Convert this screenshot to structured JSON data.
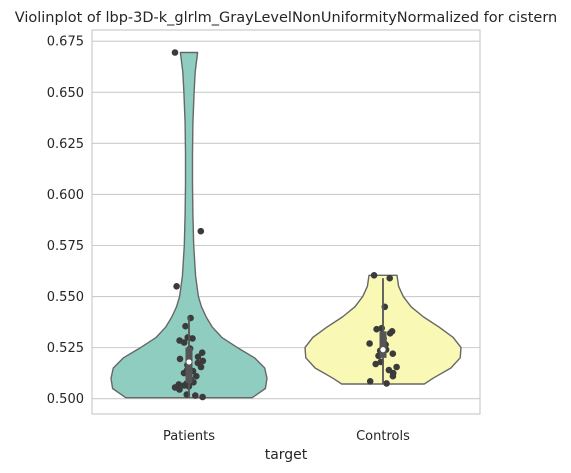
{
  "chart_data": {
    "type": "violin",
    "title": "Violinplot of lbp-3D-k_glrlm_GrayLevelNonUniformityNormalized for cistern",
    "xlabel": "target",
    "ylabel": "",
    "ylim": [
      0.4925,
      0.6805
    ],
    "yticks": [
      "0.500",
      "0.525",
      "0.550",
      "0.575",
      "0.600",
      "0.625",
      "0.650",
      "0.675"
    ],
    "grid": true,
    "categories": [
      "Patients",
      "Controls"
    ],
    "colors": [
      "#8ecdc0",
      "#f9f8b5"
    ],
    "series": [
      {
        "category": "Patients",
        "min": 0.5005,
        "max": 0.6695,
        "q1": 0.5078,
        "median": 0.518,
        "q3": 0.525,
        "whisker_low": 0.5005,
        "whisker_high": 0.54,
        "density": [
          [
            0.5005,
            0.81
          ],
          [
            0.505,
            0.98
          ],
          [
            0.51,
            1.0
          ],
          [
            0.515,
            0.97
          ],
          [
            0.52,
            0.84
          ],
          [
            0.525,
            0.62
          ],
          [
            0.53,
            0.42
          ],
          [
            0.535,
            0.3
          ],
          [
            0.54,
            0.22
          ],
          [
            0.545,
            0.16
          ],
          [
            0.55,
            0.12
          ],
          [
            0.56,
            0.085
          ],
          [
            0.575,
            0.06
          ],
          [
            0.59,
            0.05
          ],
          [
            0.605,
            0.045
          ],
          [
            0.62,
            0.045
          ],
          [
            0.635,
            0.05
          ],
          [
            0.65,
            0.065
          ],
          [
            0.66,
            0.08
          ],
          [
            0.6695,
            0.11
          ]
        ],
        "points": [
          0.6695,
          0.582,
          0.555,
          0.5395,
          0.5355,
          0.53,
          0.5295,
          0.5285,
          0.5275,
          0.5245,
          0.5225,
          0.5205,
          0.5195,
          0.5185,
          0.5175,
          0.5165,
          0.5155,
          0.514,
          0.5135,
          0.5125,
          0.511,
          0.5095,
          0.508,
          0.5075,
          0.507,
          0.5065,
          0.506,
          0.5055,
          0.5045,
          0.502,
          0.5008,
          0.5015
        ]
      },
      {
        "category": "Controls",
        "min": 0.5072,
        "max": 0.5604,
        "q1": 0.52,
        "median": 0.524,
        "q3": 0.533,
        "whisker_low": 0.5072,
        "whisker_high": 0.559,
        "density": [
          [
            0.5072,
            0.53
          ],
          [
            0.51,
            0.64
          ],
          [
            0.515,
            0.87
          ],
          [
            0.52,
            0.99
          ],
          [
            0.525,
            1.0
          ],
          [
            0.53,
            0.9
          ],
          [
            0.535,
            0.72
          ],
          [
            0.54,
            0.52
          ],
          [
            0.545,
            0.36
          ],
          [
            0.55,
            0.26
          ],
          [
            0.555,
            0.2
          ],
          [
            0.5604,
            0.18
          ]
        ],
        "points": [
          0.5604,
          0.559,
          0.545,
          0.5345,
          0.534,
          0.533,
          0.532,
          0.5305,
          0.5295,
          0.528,
          0.527,
          0.5265,
          0.524,
          0.5235,
          0.522,
          0.521,
          0.518,
          0.517,
          0.5155,
          0.514,
          0.5125,
          0.511,
          0.5085,
          0.5075
        ]
      }
    ]
  }
}
